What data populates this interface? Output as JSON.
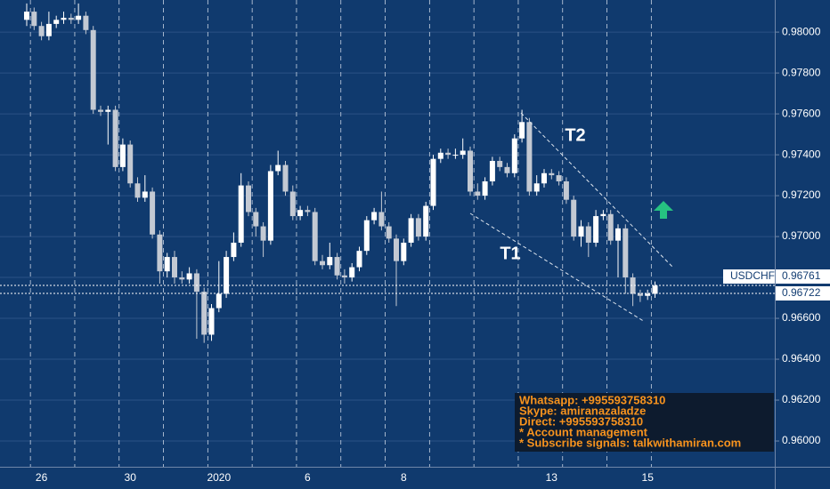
{
  "chart_data": {
    "type": "candlestick",
    "categories": [
      null,
      null,
      "26",
      null,
      null,
      null,
      null,
      null,
      null,
      null,
      null,
      null,
      null,
      null,
      "30",
      null,
      null,
      null,
      null,
      null,
      null,
      null,
      null,
      null,
      null,
      null,
      "2020",
      null,
      null,
      null,
      null,
      null,
      null,
      null,
      null,
      null,
      null,
      null,
      "6",
      null,
      null,
      null,
      null,
      null,
      null,
      null,
      null,
      null,
      null,
      null,
      null,
      "8",
      null,
      null,
      null,
      null,
      null,
      null,
      null,
      null,
      null,
      null,
      null,
      null,
      null,
      null,
      null,
      null,
      null,
      null,
      null,
      "13",
      null,
      null,
      null,
      null,
      null,
      null,
      null,
      null,
      null,
      null,
      null,
      null,
      "15",
      null
    ],
    "open": [
      0.9806,
      0.981,
      0.9803,
      0.9798,
      0.9804,
      0.9806,
      0.9807,
      0.9806,
      0.9808,
      0.9801,
      0.9762,
      0.9761,
      0.9762,
      0.9734,
      0.9745,
      0.9726,
      0.9719,
      0.9722,
      0.9701,
      0.9683,
      0.969,
      0.968,
      0.9679,
      0.9682,
      0.9673,
      0.9652,
      0.9665,
      0.9672,
      0.969,
      0.9697,
      0.9725,
      0.9712,
      0.9705,
      0.9698,
      0.9732,
      0.9735,
      0.9722,
      0.971,
      0.9713,
      0.9712,
      0.9688,
      0.9686,
      0.969,
      0.9681,
      0.968,
      0.9685,
      0.9693,
      0.9708,
      0.9712,
      0.9705,
      0.9699,
      0.9688,
      0.9697,
      0.9709,
      0.97,
      0.9715,
      0.9738,
      0.9741,
      0.974,
      0.974,
      0.9742,
      0.9722,
      0.972,
      0.9727,
      0.9737,
      0.9734,
      0.9731,
      0.9748,
      0.9756,
      0.9722,
      0.9726,
      0.9731,
      0.973,
      0.9727,
      0.9718,
      0.97,
      0.9705,
      0.9697,
      0.971,
      0.9711,
      0.9698,
      0.9704,
      0.968,
      0.9672,
      0.9671,
      0.9672
    ],
    "high": [
      0.9814,
      0.9812,
      0.9805,
      0.981,
      0.9808,
      0.981,
      0.9809,
      0.9814,
      0.981,
      0.9803,
      0.9764,
      0.9764,
      0.9764,
      0.9748,
      0.9747,
      0.9729,
      0.973,
      0.9724,
      0.9703,
      0.9692,
      0.9693,
      0.9683,
      0.9685,
      0.9684,
      0.9675,
      0.9667,
      0.9688,
      0.9693,
      0.9702,
      0.9731,
      0.9727,
      0.9714,
      0.9707,
      0.9735,
      0.9742,
      0.9737,
      0.9725,
      0.9715,
      0.9715,
      0.9714,
      0.9691,
      0.9697,
      0.9692,
      0.9684,
      0.9687,
      0.9695,
      0.971,
      0.9714,
      0.9722,
      0.9707,
      0.9701,
      0.9699,
      0.9711,
      0.9711,
      0.9717,
      0.974,
      0.9743,
      0.9743,
      0.9743,
      0.9748,
      0.9744,
      0.9726,
      0.9729,
      0.9739,
      0.9739,
      0.9736,
      0.975,
      0.9762,
      0.9758,
      0.973,
      0.9733,
      0.9733,
      0.9732,
      0.9729,
      0.972,
      0.9708,
      0.9707,
      0.9713,
      0.9713,
      0.9713,
      0.9706,
      0.9706,
      0.9682,
      0.9674,
      0.9674,
      0.9678
    ],
    "low": [
      0.9803,
      0.9801,
      0.9796,
      0.9796,
      0.9802,
      0.9804,
      0.9804,
      0.9804,
      0.9799,
      0.976,
      0.9759,
      0.9745,
      0.9732,
      0.9732,
      0.9724,
      0.9717,
      0.9717,
      0.9699,
      0.9677,
      0.968,
      0.9677,
      0.9677,
      0.9677,
      0.965,
      0.9648,
      0.9649,
      0.9663,
      0.967,
      0.9688,
      0.9695,
      0.971,
      0.97,
      0.969,
      0.9696,
      0.973,
      0.972,
      0.9708,
      0.9708,
      0.971,
      0.9686,
      0.9684,
      0.9684,
      0.9679,
      0.9677,
      0.9678,
      0.9683,
      0.9691,
      0.9706,
      0.9703,
      0.9697,
      0.9666,
      0.9686,
      0.9695,
      0.9698,
      0.9698,
      0.9713,
      0.9736,
      0.9738,
      0.9738,
      0.9738,
      0.972,
      0.9718,
      0.9718,
      0.9725,
      0.9732,
      0.9729,
      0.9729,
      0.9746,
      0.972,
      0.972,
      0.9724,
      0.9728,
      0.9725,
      0.9716,
      0.9698,
      0.9695,
      0.969,
      0.9695,
      0.9708,
      0.9696,
      0.968,
      0.9672,
      0.9666,
      0.9668,
      0.9669,
      0.967
    ],
    "close": [
      0.981,
      0.9803,
      0.9798,
      0.9804,
      0.9806,
      0.9807,
      0.9806,
      0.9808,
      0.9801,
      0.9762,
      0.9761,
      0.9762,
      0.9734,
      0.9745,
      0.9726,
      0.9719,
      0.9722,
      0.9701,
      0.9683,
      0.969,
      0.968,
      0.9679,
      0.9682,
      0.9673,
      0.9652,
      0.9665,
      0.9672,
      0.969,
      0.9697,
      0.9725,
      0.9712,
      0.9705,
      0.9698,
      0.9732,
      0.9735,
      0.9722,
      0.971,
      0.9713,
      0.9712,
      0.9688,
      0.9686,
      0.969,
      0.9681,
      0.968,
      0.9685,
      0.9693,
      0.9708,
      0.9712,
      0.9705,
      0.9699,
      0.9688,
      0.9697,
      0.9709,
      0.97,
      0.9715,
      0.9738,
      0.9741,
      0.974,
      0.974,
      0.9742,
      0.9722,
      0.972,
      0.9727,
      0.9737,
      0.9734,
      0.9731,
      0.9748,
      0.9756,
      0.9722,
      0.9726,
      0.9731,
      0.973,
      0.9727,
      0.9718,
      0.97,
      0.9705,
      0.9697,
      0.971,
      0.9711,
      0.9698,
      0.9704,
      0.968,
      0.9672,
      0.9671,
      0.9672,
      0.9676
    ],
    "up_color": "#ffffff",
    "down_color": "#c3c9d3",
    "ylim": [
      0.95874,
      0.98157
    ],
    "yticks": [
      {
        "value": 0.98,
        "label": "0.98000"
      },
      {
        "value": 0.978,
        "label": "0.97800"
      },
      {
        "value": 0.976,
        "label": "0.97600"
      },
      {
        "value": 0.974,
        "label": "0.97400"
      },
      {
        "value": 0.972,
        "label": "0.97200"
      },
      {
        "value": 0.97,
        "label": "0.97000"
      },
      {
        "value": 0.968,
        "label": "0.96800"
      },
      {
        "value": 0.966,
        "label": "0.96600"
      },
      {
        "value": 0.964,
        "label": "0.96400"
      },
      {
        "value": 0.962,
        "label": "0.96200"
      },
      {
        "value": 0.96,
        "label": "0.96000"
      }
    ],
    "grid": true,
    "price_lines": [
      {
        "label": "USDCHF",
        "value": 0.96761
      },
      {
        "value": 0.96722
      }
    ],
    "annotations": {
      "t1": "T1",
      "t2": "T2"
    },
    "info_box": [
      "Whatsapp: +995593758310",
      "Skype: amiranazaladze",
      "Direct: +995593758310",
      "* Account management",
      "* Subscribe signals: talkwithamiran.com"
    ]
  }
}
